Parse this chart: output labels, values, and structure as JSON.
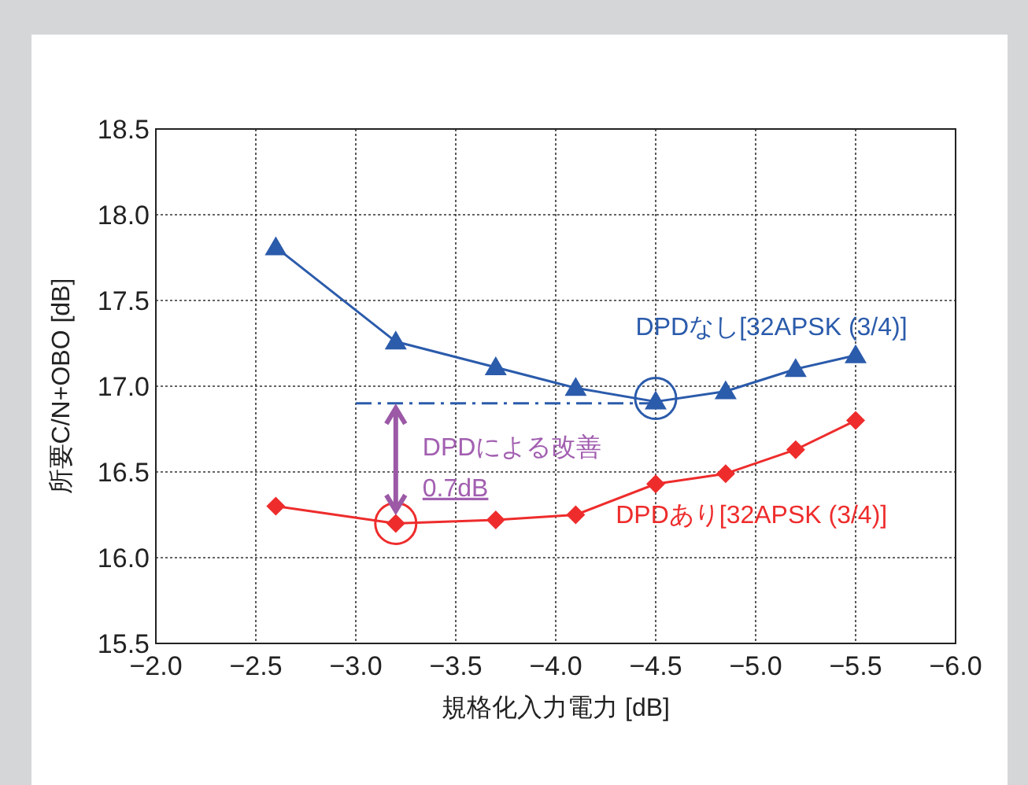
{
  "chart_data": {
    "type": "line",
    "xlabel": "規格化入力電力 [dB]",
    "ylabel": "所要C/N+OBO [dB]",
    "x": [
      -2.6,
      -3.2,
      -3.7,
      -4.1,
      -4.5,
      -4.85,
      -5.2,
      -5.5
    ],
    "series": [
      {
        "name": "DPDなし[32APSK (3/4)]",
        "color": "#2b5bab",
        "marker": "triangle",
        "values": [
          17.81,
          17.26,
          17.11,
          16.99,
          16.91,
          16.97,
          17.1,
          17.18
        ]
      },
      {
        "name": "DPDあり[32APSK (3/4)]",
        "color": "#ee2c2c",
        "marker": "diamond",
        "values": [
          16.3,
          16.2,
          16.22,
          16.25,
          16.43,
          16.49,
          16.63,
          16.8
        ]
      },
      {
        "type": "line",
        "color": "#2b5bab",
        "line_style": "dashed",
        "x": [
          -3.0,
          -4.5
        ],
        "values": [
          16.9,
          16.9
        ]
      }
    ],
    "annotations": [
      "DPDによる改善",
      {
        "text": "0.7dB",
        "x": -3.2,
        "y": 16.2
      }
    ],
    "xlim": [
      -2.0,
      -6.0
    ],
    "ylim": [
      15.5,
      18.5
    ],
    "xticks": [
      {
        "value": -2.0,
        "label": "−2.0"
      },
      {
        "value": -2.5,
        "label": "−2.5"
      },
      {
        "value": -3.0,
        "label": "−3.0"
      },
      {
        "value": -3.5,
        "label": "−3.5"
      },
      {
        "value": -4.0,
        "label": "−4.0"
      },
      {
        "value": -4.5,
        "label": "−4.5"
      },
      {
        "value": -5.0,
        "label": "−5.0"
      },
      {
        "value": -5.5,
        "label": "−5.5"
      },
      {
        "value": -6.0,
        "label": "−6.0"
      }
    ],
    "yticks": [
      {
        "value": 15.5,
        "label": "15.5"
      },
      {
        "value": 16.0,
        "label": "16.0"
      },
      {
        "value": 16.5,
        "label": "16.5"
      },
      {
        "value": 17.0,
        "label": "17.0"
      },
      {
        "value": 17.5,
        "label": "17.5"
      },
      {
        "value": 18.0,
        "label": "18.0"
      },
      {
        "value": 18.5,
        "label": "18.5"
      }
    ],
    "grid": true
  }
}
